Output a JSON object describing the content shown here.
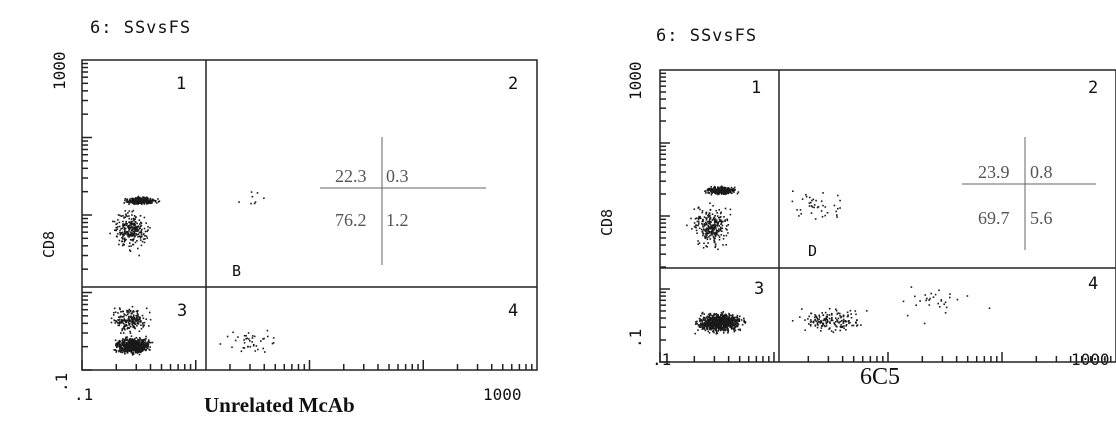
{
  "chart_data": [
    {
      "type": "scatter",
      "title": "6:  SSvsFS",
      "ylabel": "CD8",
      "xlabel": "Unrelated McAb",
      "x_ticks": [
        ".1",
        "1000"
      ],
      "y_ticks": [
        ".1",
        "1000"
      ],
      "quadrant_labels": [
        "1",
        "2",
        "3",
        "4"
      ],
      "gate_label": "B",
      "quadrant_percentages": {
        "q1": "22.3",
        "q2": "0.3",
        "q3": "76.2",
        "q4": "1.2"
      }
    },
    {
      "type": "scatter",
      "title": "6:  SSvsFS",
      "ylabel": "CD8",
      "xlabel": "6C5",
      "x_ticks": [
        ".1",
        "1000"
      ],
      "y_ticks": [
        ".1",
        "1000"
      ],
      "quadrant_labels": [
        "1",
        "2",
        "3",
        "4"
      ],
      "gate_label": "D",
      "quadrant_percentages": {
        "q1": "23.9",
        "q2": "0.8",
        "q3": "69.7",
        "q4": "5.6"
      }
    }
  ]
}
